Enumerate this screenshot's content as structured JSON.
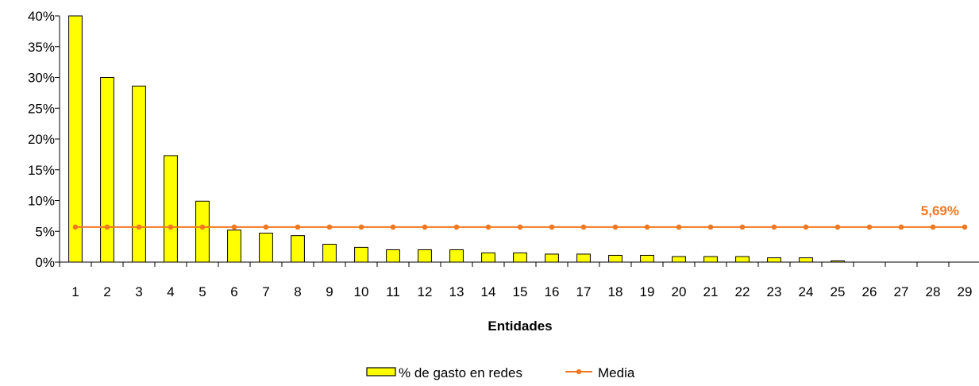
{
  "chart_data": {
    "type": "bar",
    "xlabel": "Entidades",
    "ylabel": "",
    "ylim": [
      0,
      40
    ],
    "y_ticks": [
      "0%",
      "5%",
      "10%",
      "15%",
      "20%",
      "25%",
      "30%",
      "35%",
      "40%"
    ],
    "categories": [
      "1",
      "2",
      "3",
      "4",
      "5",
      "6",
      "7",
      "8",
      "9",
      "10",
      "11",
      "12",
      "13",
      "14",
      "15",
      "16",
      "17",
      "18",
      "19",
      "20",
      "21",
      "22",
      "23",
      "24",
      "25",
      "26",
      "27",
      "28",
      "29"
    ],
    "series": [
      {
        "name": "% de gasto en redes",
        "type": "bar",
        "color": "#ffff00",
        "values": [
          40.0,
          30.0,
          28.6,
          17.3,
          9.9,
          5.2,
          4.7,
          4.3,
          2.9,
          2.4,
          2.0,
          2.0,
          2.0,
          1.5,
          1.5,
          1.3,
          1.3,
          1.1,
          1.1,
          0.9,
          0.9,
          0.9,
          0.7,
          0.7,
          0.2,
          0,
          0,
          0,
          0
        ]
      },
      {
        "name": "Media",
        "type": "line",
        "color": "#f07820",
        "value": 5.69
      }
    ],
    "annotation": "5,69%",
    "legend_position": "bottom",
    "grid": false
  }
}
